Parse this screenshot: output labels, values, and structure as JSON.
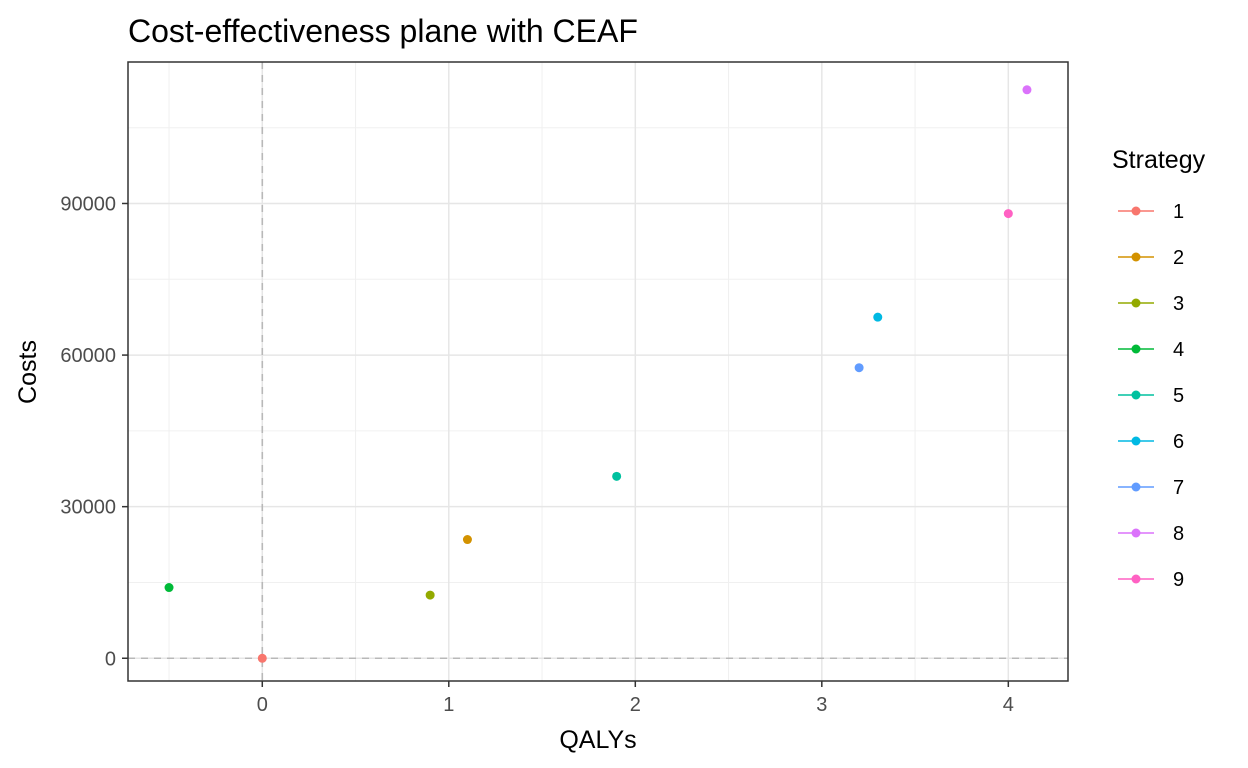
{
  "chart_data": {
    "type": "scatter",
    "title": "Cost-effectiveness plane with CEAF",
    "xlabel": "QALYs",
    "ylabel": "Costs",
    "xlim": [
      -0.72,
      4.32
    ],
    "ylim": [
      -4500,
      118000
    ],
    "x_ticks": [
      0,
      1,
      2,
      3,
      4
    ],
    "x_tick_labels": [
      "0",
      "1",
      "2",
      "3",
      "4"
    ],
    "y_ticks": [
      0,
      30000,
      60000,
      90000
    ],
    "y_tick_labels": [
      "0",
      "30000",
      "60000",
      "90000"
    ],
    "x_minor_ticks": [
      -0.5,
      0.5,
      1.5,
      2.5,
      3.5
    ],
    "y_minor_ticks": [
      15000,
      45000,
      75000,
      105000
    ],
    "grid": true,
    "reference_lines": {
      "x": 0,
      "y": 0,
      "style": "dashed"
    },
    "legend": {
      "title": "Strategy",
      "position": "right",
      "entries": [
        "1",
        "2",
        "3",
        "4",
        "5",
        "6",
        "7",
        "8",
        "9"
      ]
    },
    "series": [
      {
        "name": "1",
        "color": "#F8766D",
        "x": 0.0,
        "y": 0
      },
      {
        "name": "2",
        "color": "#D39200",
        "x": 1.1,
        "y": 23500
      },
      {
        "name": "3",
        "color": "#93AA00",
        "x": 0.9,
        "y": 12500
      },
      {
        "name": "4",
        "color": "#00BA38",
        "x": -0.5,
        "y": 14000
      },
      {
        "name": "5",
        "color": "#00C19F",
        "x": 1.9,
        "y": 36000
      },
      {
        "name": "6",
        "color": "#00B9E3",
        "x": 3.3,
        "y": 67500
      },
      {
        "name": "7",
        "color": "#619CFF",
        "x": 3.2,
        "y": 57500
      },
      {
        "name": "8",
        "color": "#DB72FB",
        "x": 4.1,
        "y": 112500
      },
      {
        "name": "9",
        "color": "#FF61C3",
        "x": 4.0,
        "y": 88000
      }
    ]
  }
}
